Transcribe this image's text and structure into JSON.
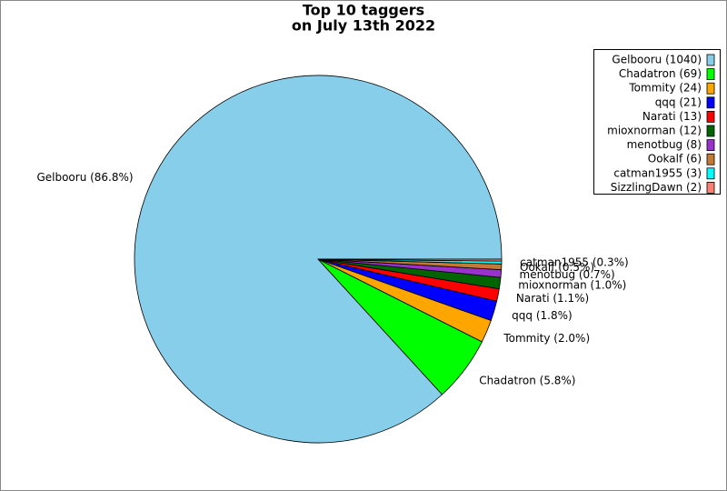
{
  "chart_data": {
    "type": "pie",
    "title": [
      "Top 10 taggers",
      "on July 13th 2022"
    ],
    "categories": [
      "Gelbooru",
      "Chadatron",
      "Tommity",
      "qqq",
      "Narati",
      "mioxnorman",
      "menotbug",
      "Ookalf",
      "catman1955",
      "SizzlingDawn"
    ],
    "values": [
      1040,
      69,
      24,
      21,
      13,
      12,
      8,
      6,
      3,
      2
    ],
    "slice_labels": [
      "Gelbooru (86.8%)",
      "Chadatron (5.8%)",
      "Tommity (2.0%)",
      "qqq (1.8%)",
      "Narati (1.1%)",
      "mioxnorman (1.0%)",
      "menotbug (0.7%)",
      "Ookalf (0.5%)",
      "catman1955 (0.3%)",
      null
    ],
    "legend_labels": [
      "Gelbooru (1040)",
      "Chadatron (69)",
      "Tommity (24)",
      "qqq (21)",
      "Narati (13)",
      "mioxnorman (12)",
      "menotbug (8)",
      "Ookalf (6)",
      "catman1955 (3)",
      "SizzlingDawn (2)"
    ],
    "colors": [
      "#87ceeb",
      "#00ff00",
      "#ffa500",
      "#0000ff",
      "#ff0000",
      "#006400",
      "#9932cc",
      "#c47a32",
      "#00ffff",
      "#fa8072"
    ],
    "legend": "upper right"
  }
}
